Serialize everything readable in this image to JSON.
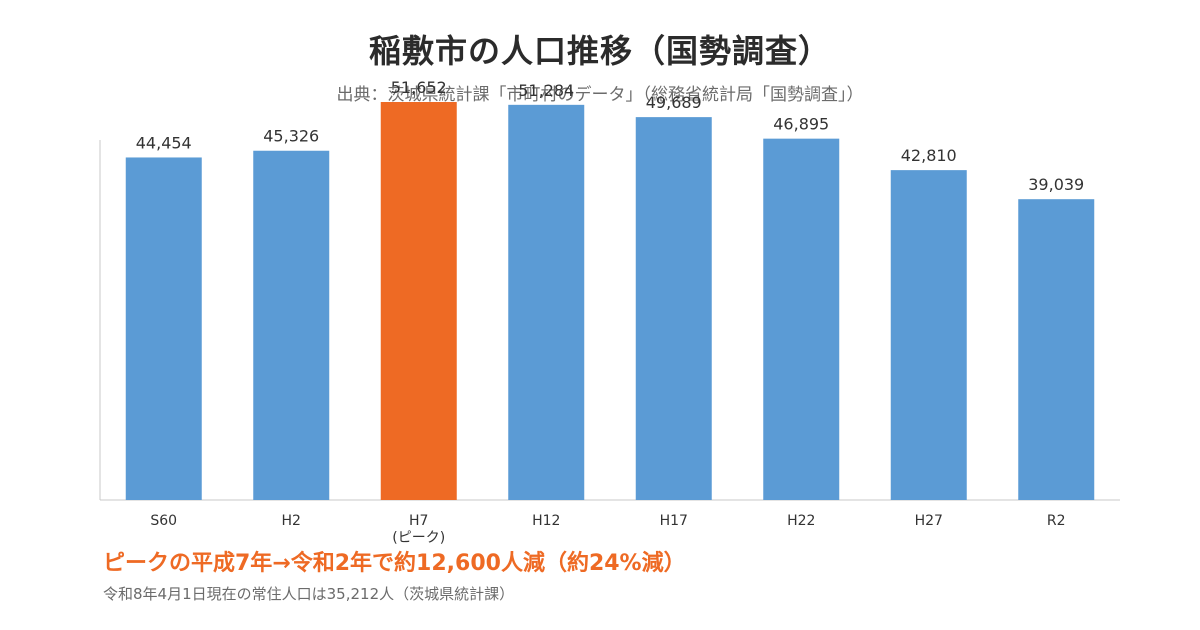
{
  "header": {
    "title": "稲敷市の人口推移（国勢調査）",
    "subtitle": "出典：茨城県統計課「市町村のデータ」（総務省統計局「国勢調査」）"
  },
  "chart_data": {
    "type": "bar",
    "categories": [
      "S60",
      "H2",
      "H7",
      "H12",
      "H17",
      "H22",
      "H27",
      "R2"
    ],
    "category_sublabels": [
      "",
      "",
      "(ピーク)",
      "",
      "",
      "",
      "",
      ""
    ],
    "values": [
      44454,
      45326,
      51652,
      51284,
      49689,
      46895,
      42810,
      39039
    ],
    "value_labels": [
      "44,454",
      "45,326",
      "51,652",
      "51,284",
      "49,689",
      "46,895",
      "42,810",
      "39,039"
    ],
    "highlight_index": 2,
    "ylim": [
      0,
      55000
    ],
    "grid": false,
    "legend": "none",
    "colors": {
      "bar": "#5b9bd5",
      "highlight": "#ee6a24",
      "axis": "#c8c8c8"
    }
  },
  "footer": {
    "headline": "ピークの平成7年→令和2年で約12,600人減（約24%減）",
    "note": "令和8年4月1日現在の常住人口は35,212人（茨城県統計課）"
  }
}
